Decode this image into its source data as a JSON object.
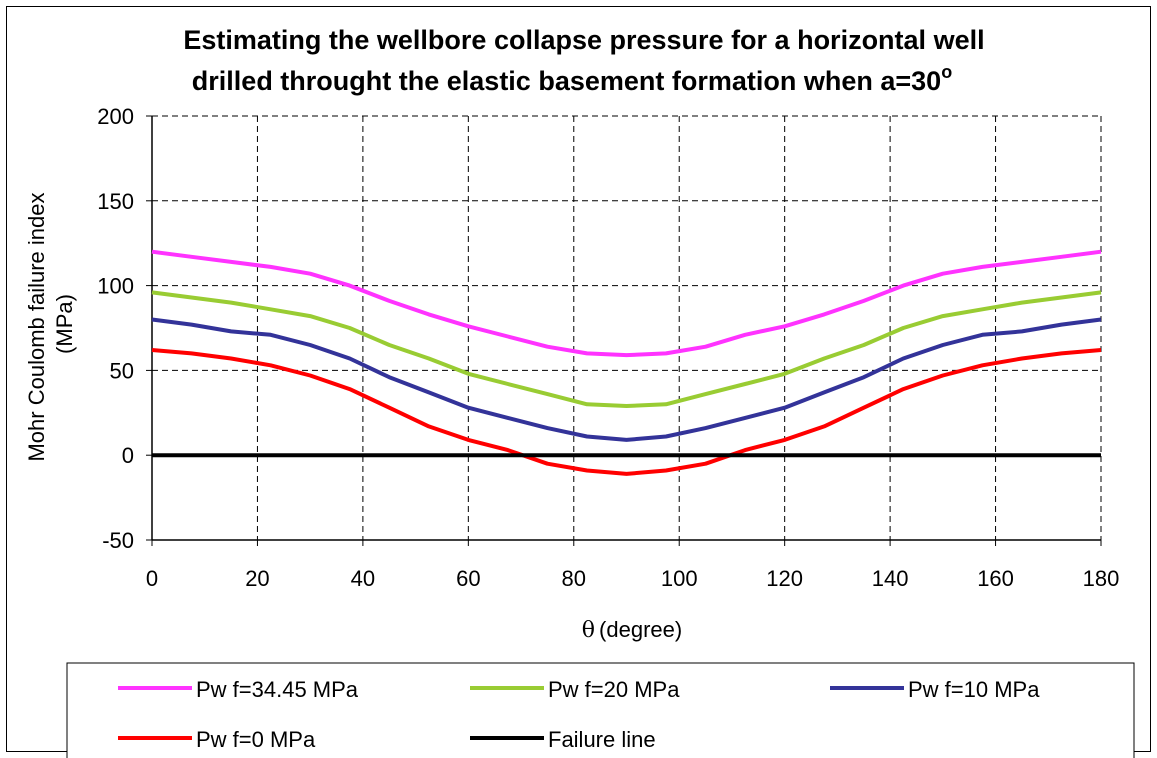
{
  "chart_data": {
    "type": "line",
    "title_lines": [
      "Estimating the wellbore collapse pressure for a horizontal well",
      "drilled throught the elastic basement formation when a=30"
    ],
    "title_superscript": "o",
    "xlabel_symbol": "θ",
    "xlabel": "(degree)",
    "ylabel_lines": [
      "Mohr Coulomb failure index",
      "(MPa)"
    ],
    "xlim": [
      0,
      180
    ],
    "ylim": [
      -50,
      200
    ],
    "x_ticks": [
      0,
      20,
      40,
      60,
      80,
      100,
      120,
      140,
      160,
      180
    ],
    "y_ticks": [
      -50,
      0,
      50,
      100,
      150,
      200
    ],
    "grid": true,
    "legend_position": "bottom",
    "x": [
      0,
      7.5,
      15,
      22.5,
      30,
      37.5,
      45,
      52.5,
      60,
      67.5,
      75,
      82.5,
      90,
      97.5,
      105,
      112.5,
      120,
      127.5,
      135,
      142.5,
      150,
      157.5,
      165,
      172.5,
      180
    ],
    "series": [
      {
        "name": "Pw f=34.45 MPa",
        "color": "#ff33ff",
        "values": [
          120,
          117,
          114,
          111,
          107,
          100,
          91,
          83,
          76,
          70,
          64,
          60,
          59,
          60,
          64,
          71,
          76,
          83,
          91,
          100,
          107,
          111,
          114,
          117,
          120
        ]
      },
      {
        "name": "Pw f=20 MPa",
        "color": "#99cc33",
        "values": [
          96,
          93,
          90,
          86,
          82,
          75,
          65,
          57,
          48,
          42,
          36,
          30,
          29,
          30,
          36,
          42,
          48,
          57,
          65,
          75,
          82,
          86,
          90,
          93,
          96
        ]
      },
      {
        "name": "Pw f=10 MPa",
        "color": "#333399",
        "values": [
          80,
          77,
          73,
          71,
          65,
          57,
          46,
          37,
          28,
          22,
          16,
          11,
          9,
          11,
          16,
          22,
          28,
          37,
          46,
          57,
          65,
          71,
          73,
          77,
          80
        ]
      },
      {
        "name": "Pw f=0 MPa",
        "color": "#ff0000",
        "values": [
          62,
          60,
          57,
          53,
          47,
          39,
          28,
          17,
          9,
          3,
          -5,
          -9,
          -11,
          -9,
          -5,
          3,
          9,
          17,
          28,
          39,
          47,
          53,
          57,
          60,
          62
        ]
      },
      {
        "name": "Failure line",
        "color": "#000000",
        "values": [
          0,
          0,
          0,
          0,
          0,
          0,
          0,
          0,
          0,
          0,
          0,
          0,
          0,
          0,
          0,
          0,
          0,
          0,
          0,
          0,
          0,
          0,
          0,
          0,
          0
        ]
      }
    ]
  }
}
